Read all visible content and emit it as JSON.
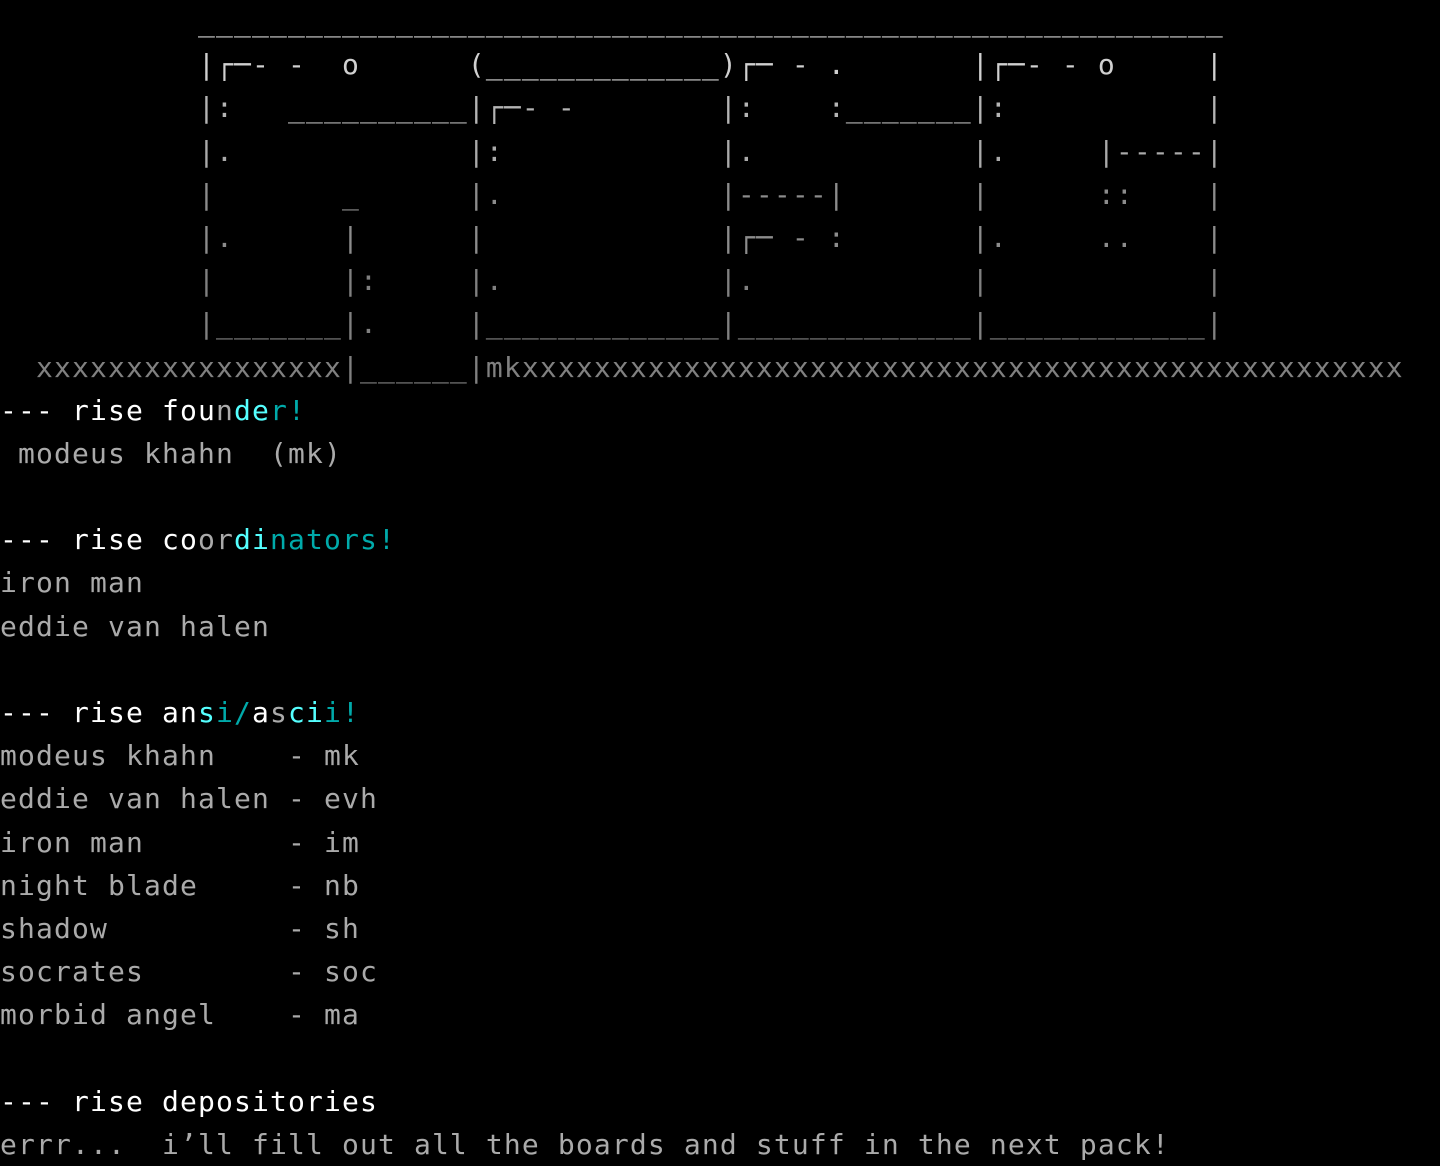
{
  "palette": {
    "white": "#ffffff",
    "gray": "#aaaaaa",
    "bright_cyan": "#55ffff",
    "dark_cyan": "#00aaaa",
    "background": "#000000"
  },
  "logo_art": {
    "rows": [
      "           _________________________________________________________",
      "           |┌─- -  o      (_____________)┌─ - .       |┌─- - o     |",
      "           |:   __________|┌─- -        |:    :_______|:           |",
      "           |.             |:            |.            |.     |-----|",
      "           |       _      |.            |-----|       |      ::    |",
      "           |.      |      |             |┌─ - :       |.     ..    |",
      "           |       |:     |.            |.            |            |",
      "           |_______|.     |_____________|_____________|____________|",
      "  xxxxxxxxxxxxxxxxx|______|mkxxxxxxxxxxxxxxxxxxxxxxxxxxxxxxxxxxxxxxxxxxxxxxxxx"
    ],
    "row_colors": [
      "#d0d0d0",
      "#d0d0d0",
      "#b4b4b4",
      "#aaaaaa",
      "#8c8c8c",
      "#8c8c8c",
      "#808080",
      "#808080",
      "#808080"
    ]
  },
  "sections": [
    {
      "header": [
        {
          "text": "--- rise fou",
          "color": "#ffffff"
        },
        {
          "text": "n",
          "color": "#aaaaaa"
        },
        {
          "text": "de",
          "color": "#55ffff"
        },
        {
          "text": "r!",
          "color": "#00aaaa"
        }
      ],
      "lines": [
        " modeus khahn  (mk)"
      ]
    },
    {
      "header": [
        {
          "text": "--- rise co",
          "color": "#ffffff"
        },
        {
          "text": "or",
          "color": "#aaaaaa"
        },
        {
          "text": "di",
          "color": "#55ffff"
        },
        {
          "text": "nators!",
          "color": "#00aaaa"
        }
      ],
      "lines": [
        "iron man",
        "eddie van halen"
      ]
    },
    {
      "header": [
        {
          "text": "--- rise an",
          "color": "#ffffff"
        },
        {
          "text": "s",
          "color": "#55ffff"
        },
        {
          "text": "i/",
          "color": "#00aaaa"
        },
        {
          "text": "a",
          "color": "#ffffff"
        },
        {
          "text": "s",
          "color": "#aaaaaa"
        },
        {
          "text": "ci",
          "color": "#55ffff"
        },
        {
          "text": "i!",
          "color": "#00aaaa"
        }
      ],
      "lines": [
        "modeus khahn    - mk",
        "eddie van halen - evh",
        "iron man        - im",
        "night blade     - nb",
        "shadow          - sh",
        "socrates        - soc",
        "morbid angel    - ma"
      ]
    },
    {
      "header": [
        {
          "text": "--- rise depositories",
          "color": "#ffffff"
        }
      ],
      "lines": [
        "errr...  i’ll fill out all the boards and stuff in the next pack!"
      ]
    }
  ]
}
